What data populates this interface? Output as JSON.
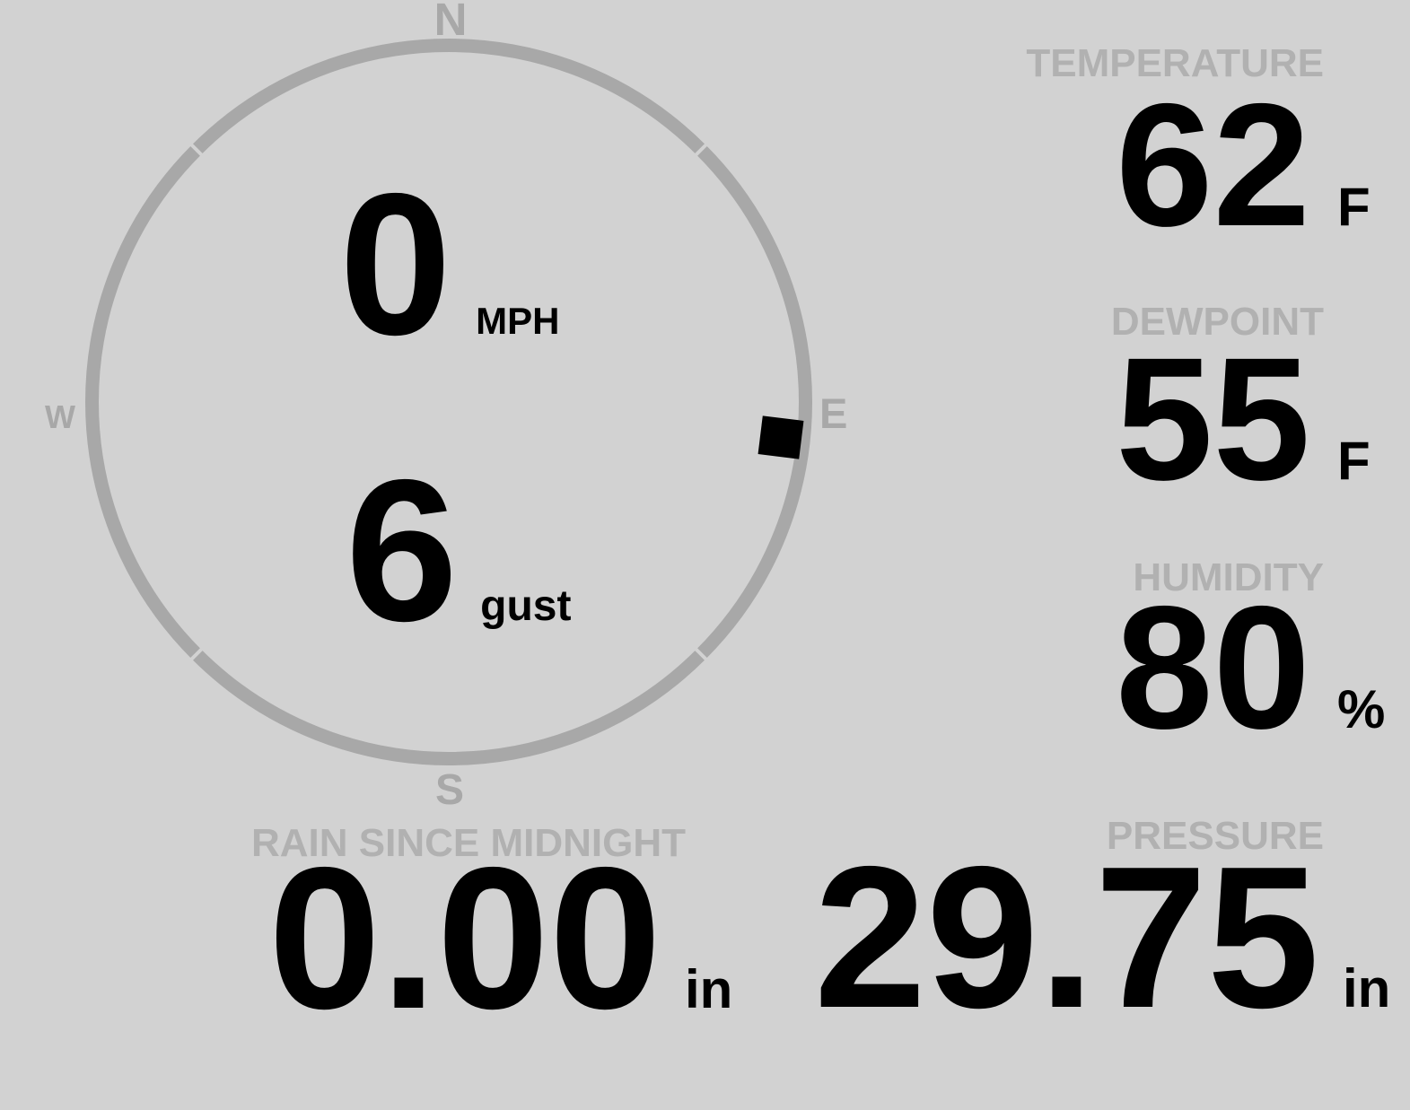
{
  "colors": {
    "background": "#d2d2d2",
    "compass_gray": "#a8a8a8",
    "label_gray": "#b1b1b1",
    "value_black": "#000000",
    "marker_black": "#000000"
  },
  "compass": {
    "cardinals": {
      "north": "N",
      "east": "E",
      "south": "S",
      "west": "W"
    },
    "speed": {
      "value": "0",
      "unit": "MPH"
    },
    "gust": {
      "value": "6",
      "unit": "gust"
    },
    "direction": "E"
  },
  "readings": {
    "temperature": {
      "label": "TEMPERATURE",
      "value": "62",
      "unit": "F"
    },
    "dewpoint": {
      "label": "DEWPOINT",
      "value": "55",
      "unit": "F"
    },
    "humidity": {
      "label": "HUMIDITY",
      "value": "80",
      "unit": "%"
    },
    "rain": {
      "label": "RAIN SINCE MIDNIGHT",
      "value": "0.00",
      "unit": "in"
    },
    "pressure": {
      "label": "PRESSURE",
      "value": "29.75",
      "unit": "in"
    }
  }
}
